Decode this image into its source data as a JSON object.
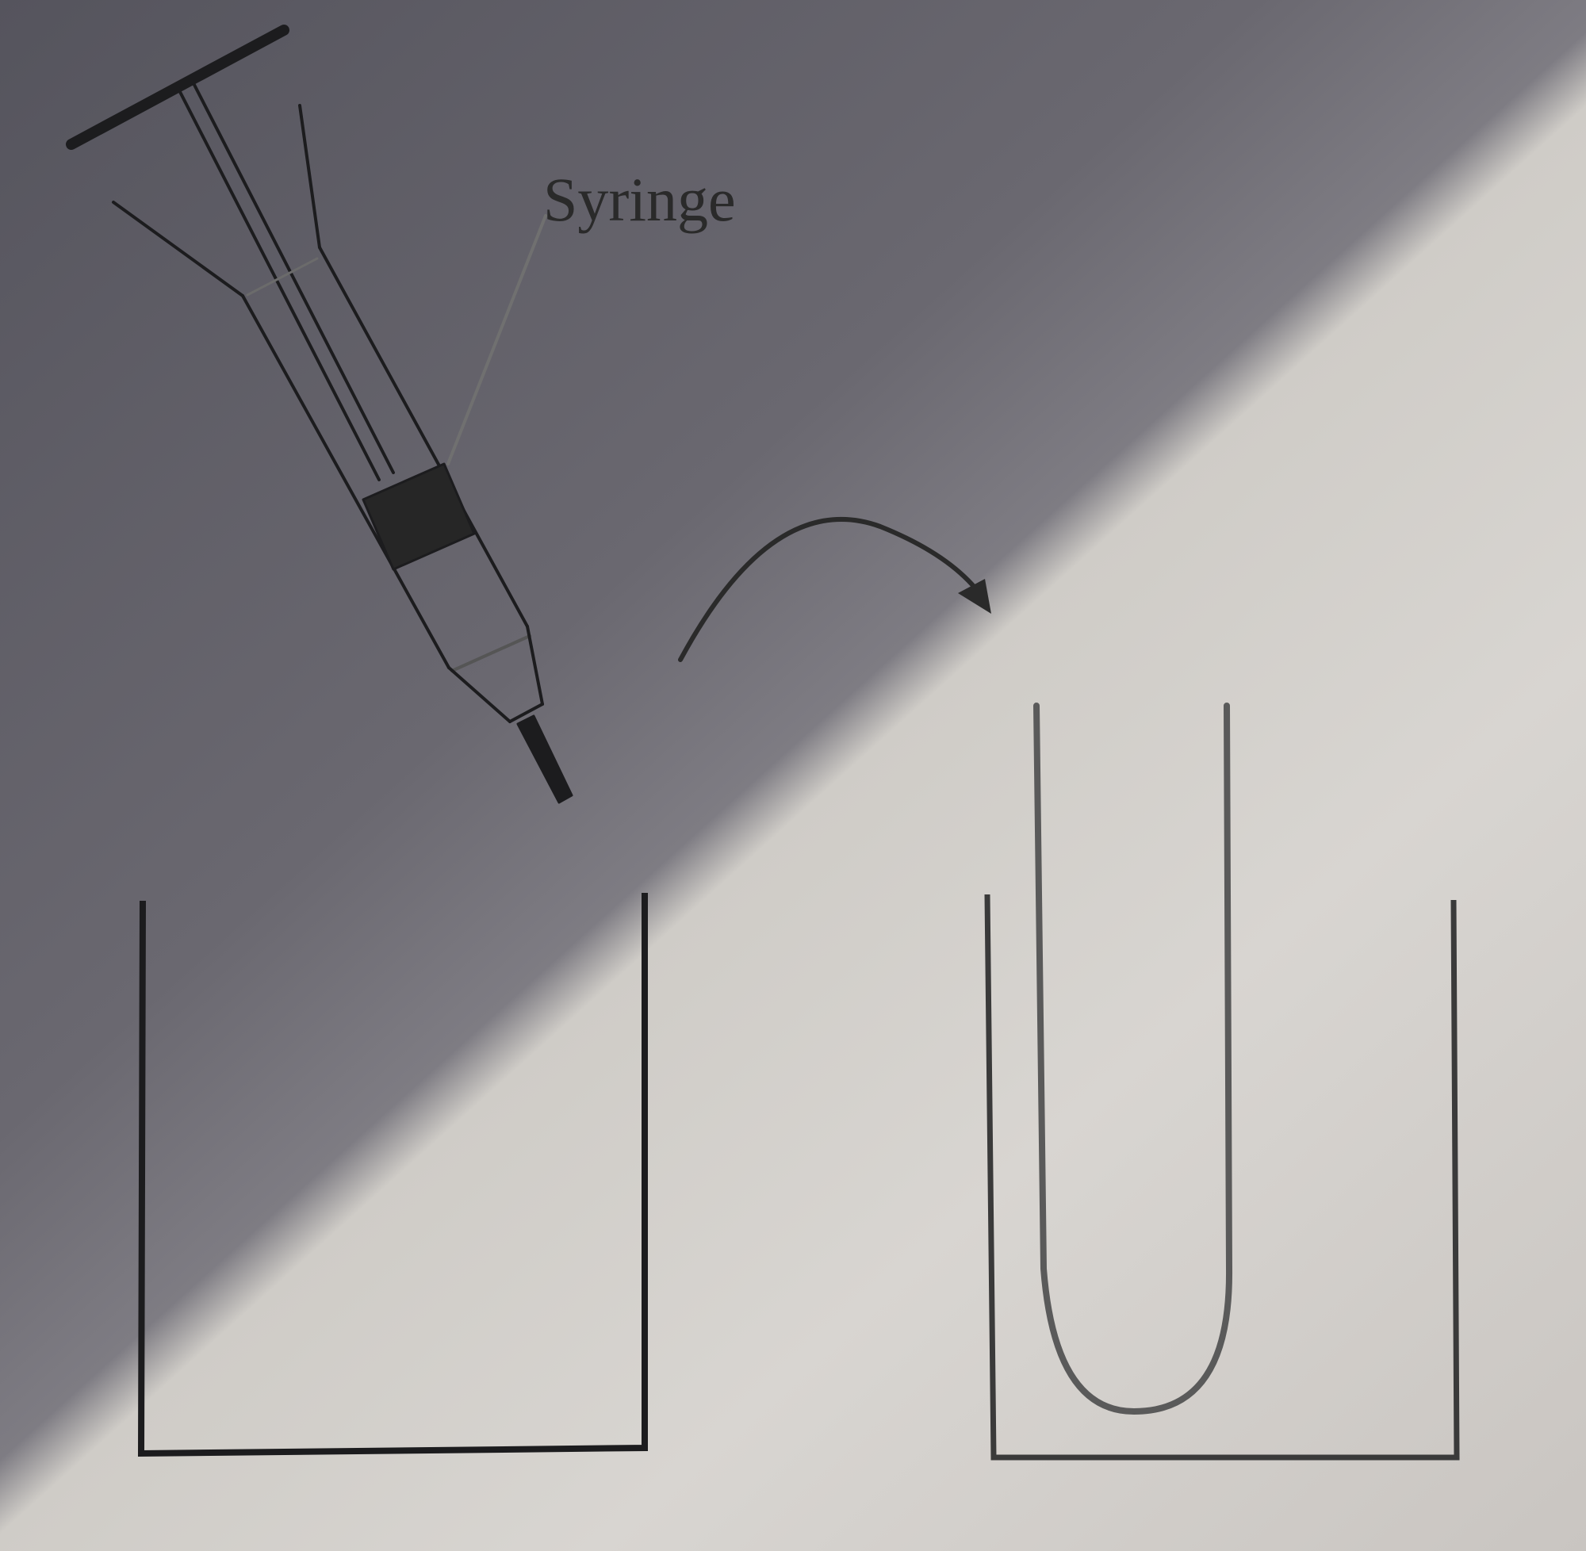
{
  "diagram": {
    "labels": {
      "syringe": "Syringe"
    },
    "colors": {
      "ink": "#1c1c1e",
      "ink_light": "#707070",
      "plunger_seal": "#262626",
      "paper": "#d8d5d1",
      "shadow": "#5e5c64"
    },
    "parts": [
      "syringe",
      "transfer-arrow",
      "beaker-left",
      "beaker-right",
      "u-tube"
    ]
  }
}
